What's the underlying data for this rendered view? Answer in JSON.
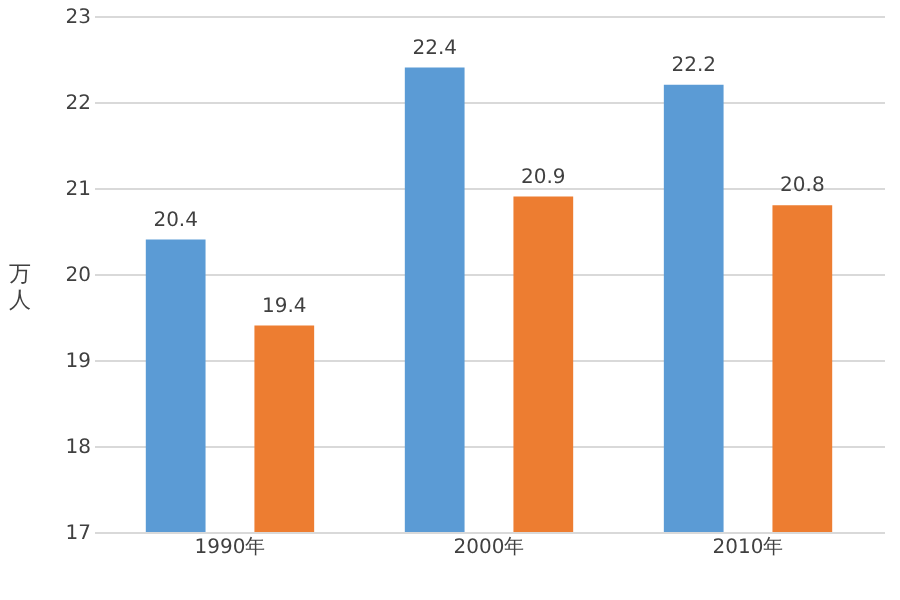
{
  "chart_data": {
    "type": "bar",
    "ylabel": "万人",
    "categories": [
      "1990年",
      "2000年",
      "2010年"
    ],
    "series": [
      {
        "color": "#5b9bd5",
        "values": [
          20.4,
          22.4,
          22.2
        ]
      },
      {
        "color": "#ed7d31",
        "values": [
          19.4,
          20.9,
          20.8
        ]
      }
    ],
    "ylim": [
      17,
      23
    ],
    "yticks": [
      17,
      18,
      19,
      20,
      21,
      22,
      23
    ],
    "grid": "y",
    "data_labels": true
  }
}
